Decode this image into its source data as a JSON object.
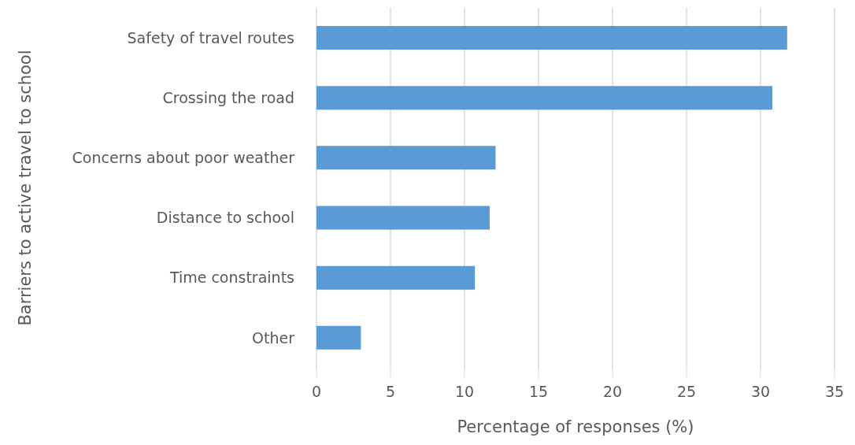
{
  "chart_data": {
    "type": "bar",
    "orientation": "horizontal",
    "xlabel": "Percentage of responses (%)",
    "ylabel": "Barriers to active travel to school",
    "categories": [
      "Safety of travel routes",
      "Crossing the road",
      "Concerns about poor weather",
      "Distance to school",
      "Time constraints",
      "Other"
    ],
    "values": [
      31.8,
      30.8,
      12.1,
      11.7,
      10.7,
      3.0
    ],
    "color": "#5b9bd5",
    "xlim": [
      0,
      35
    ],
    "xticks": [
      0,
      5,
      10,
      15,
      20,
      25,
      30,
      35
    ],
    "grid": "x"
  }
}
